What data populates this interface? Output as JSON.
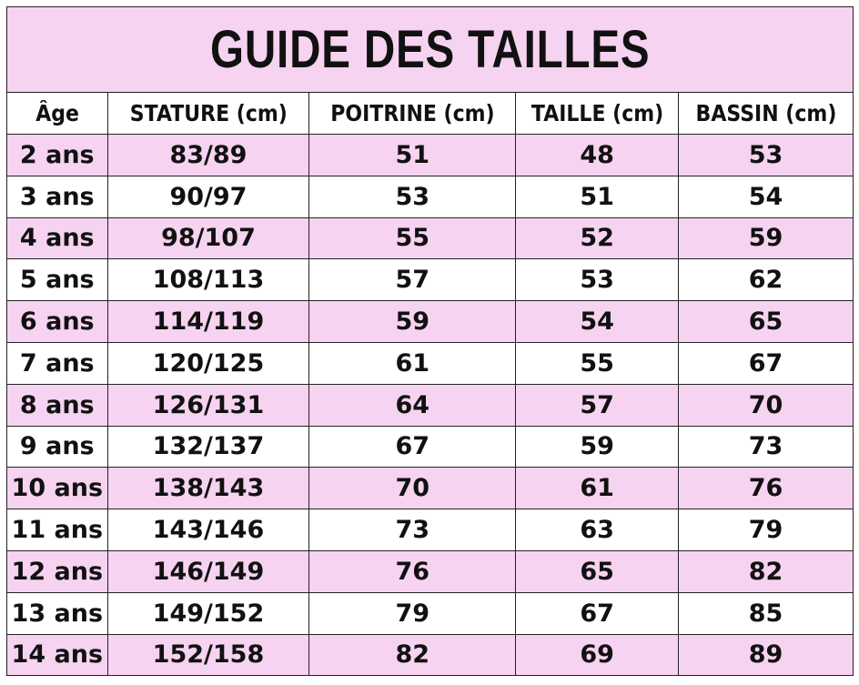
{
  "title": "GUIDE DES TAILLES",
  "headers": [
    "Âge",
    "STATURE (cm)",
    "POITRINE (cm)",
    "TAILLE (cm)",
    "BASSIN (cm)"
  ],
  "rows": [
    [
      "2 ans",
      "83/89",
      "51",
      "48",
      "53"
    ],
    [
      "3 ans",
      "90/97",
      "53",
      "51",
      "54"
    ],
    [
      "4 ans",
      "98/107",
      "55",
      "52",
      "59"
    ],
    [
      "5 ans",
      "108/113",
      "57",
      "53",
      "62"
    ],
    [
      "6 ans",
      "114/119",
      "59",
      "54",
      "65"
    ],
    [
      "7 ans",
      "120/125",
      "61",
      "55",
      "67"
    ],
    [
      "8 ans",
      "126/131",
      "64",
      "57",
      "70"
    ],
    [
      "9 ans",
      "132/137",
      "67",
      "59",
      "73"
    ],
    [
      "10 ans",
      "138/143",
      "70",
      "61",
      "76"
    ],
    [
      "11 ans",
      "143/146",
      "73",
      "63",
      "79"
    ],
    [
      "12 ans",
      "146/149",
      "76",
      "65",
      "82"
    ],
    [
      "13 ans",
      "149/152",
      "79",
      "67",
      "85"
    ],
    [
      "14 ans",
      "152/158",
      "82",
      "69",
      "89"
    ]
  ],
  "colors": {
    "row_highlight": "#f6d3f0",
    "border": "#222222"
  }
}
